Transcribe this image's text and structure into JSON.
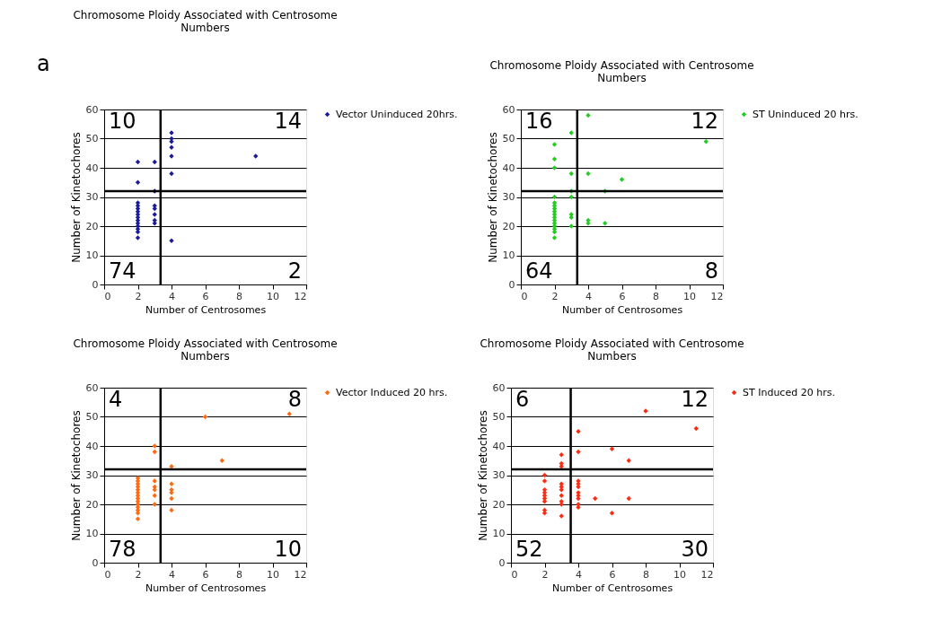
{
  "chart_data": [
    {
      "type": "scatter",
      "title": "Chromosome Ploidy Associated with Centrosome Numbers",
      "xlabel": "Number of Centrosomes",
      "ylabel": "Number of Kinetochores",
      "xlim": [
        0,
        12
      ],
      "xticks": [
        0,
        2,
        4,
        6,
        8,
        10,
        12
      ],
      "ylim": [
        0,
        60
      ],
      "yticks": [
        0,
        10,
        20,
        30,
        40,
        50,
        60
      ],
      "grid": "y",
      "legend": "right",
      "marker": "diamond",
      "annotations": [
        "10",
        "14",
        "74",
        "2",
        "a"
      ],
      "ref_lines": [
        {
          "axis": "x",
          "value": 3.35
        },
        {
          "axis": "y",
          "value": 32
        }
      ],
      "series": [
        {
          "name": "Vector Uninduced 20hrs.",
          "color": "#1a1a9a",
          "x": [
            2,
            2,
            2,
            2,
            2,
            2,
            2,
            2,
            2,
            2,
            2,
            2,
            2,
            2,
            3,
            3,
            3,
            3,
            3,
            3,
            3,
            4,
            4,
            4,
            4,
            4,
            4,
            4,
            9
          ],
          "values": [
            16,
            18,
            19,
            20,
            21,
            22,
            23,
            24,
            25,
            26,
            27,
            28,
            35,
            42,
            21,
            22,
            24,
            26,
            27,
            32,
            42,
            15,
            38,
            44,
            47,
            49,
            50,
            52,
            44
          ]
        }
      ]
    },
    {
      "type": "scatter",
      "title": "Chromosome Ploidy Associated with Centrosome Numbers",
      "xlabel": "Number of Centrosomes",
      "ylabel": "Number of Kinetochores",
      "xlim": [
        0,
        12
      ],
      "xticks": [
        0,
        2,
        4,
        6,
        8,
        10,
        12
      ],
      "ylim": [
        0,
        60
      ],
      "yticks": [
        0,
        10,
        20,
        30,
        40,
        50,
        60
      ],
      "grid": "y",
      "legend": "right",
      "marker": "diamond",
      "annotations": [
        "16",
        "12",
        "64",
        "8"
      ],
      "ref_lines": [
        {
          "axis": "x",
          "value": 3.35
        },
        {
          "axis": "y",
          "value": 32
        }
      ],
      "series": [
        {
          "name": "ST Uninduced 20 hrs.",
          "color": "#22cc22",
          "x": [
            2,
            2,
            2,
            2,
            2,
            2,
            2,
            2,
            2,
            2,
            2,
            2,
            2,
            2,
            2,
            2,
            3,
            3,
            3,
            3,
            3,
            3,
            3,
            4,
            4,
            4,
            4,
            5,
            5,
            6,
            11
          ],
          "values": [
            16,
            18,
            19,
            20,
            21,
            22,
            23,
            24,
            25,
            26,
            27,
            28,
            30,
            40,
            43,
            48,
            20,
            23,
            24,
            30,
            32,
            38,
            52,
            21,
            22,
            38,
            58,
            21,
            32,
            36,
            49
          ]
        }
      ]
    },
    {
      "type": "scatter",
      "title": "Chromosome Ploidy Associated with Centrosome Numbers",
      "xlabel": "Number of Centrosomes",
      "ylabel": "Number of Kinetochores",
      "xlim": [
        0,
        12
      ],
      "xticks": [
        0,
        2,
        4,
        6,
        8,
        10,
        12
      ],
      "ylim": [
        0,
        60
      ],
      "yticks": [
        0,
        10,
        20,
        30,
        40,
        50,
        60
      ],
      "grid": "y",
      "legend": "right",
      "marker": "diamond",
      "annotations": [
        "4",
        "8",
        "78",
        "10"
      ],
      "ref_lines": [
        {
          "axis": "x",
          "value": 3.35
        },
        {
          "axis": "y",
          "value": 32
        }
      ],
      "series": [
        {
          "name": "Vector Induced 20 hrs.",
          "color": "#ff6a10",
          "x": [
            2,
            2,
            2,
            2,
            2,
            2,
            2,
            2,
            2,
            2,
            2,
            2,
            2,
            2,
            3,
            3,
            3,
            3,
            3,
            3,
            3,
            4,
            4,
            4,
            4,
            4,
            4,
            6,
            7,
            11
          ],
          "values": [
            15,
            17,
            18,
            19,
            20,
            21,
            22,
            23,
            24,
            25,
            26,
            27,
            28,
            29,
            20,
            23,
            25,
            26,
            28,
            38,
            40,
            18,
            22,
            24,
            25,
            27,
            33,
            50,
            35,
            51
          ]
        }
      ]
    },
    {
      "type": "scatter",
      "title": "Chromosome Ploidy Associated with Centrosome Numbers",
      "xlabel": "Number of Centrosomes",
      "ylabel": "Number of Kinetochores",
      "xlim": [
        0,
        12
      ],
      "xticks": [
        0,
        2,
        4,
        6,
        8,
        10,
        12
      ],
      "ylim": [
        0,
        60
      ],
      "yticks": [
        0,
        10,
        20,
        30,
        40,
        50,
        60
      ],
      "grid": "y",
      "legend": "right",
      "marker": "diamond",
      "annotations": [
        "6",
        "12",
        "52",
        "30"
      ],
      "ref_lines": [
        {
          "axis": "x",
          "value": 3.55
        },
        {
          "axis": "y",
          "value": 32
        }
      ],
      "series": [
        {
          "name": "ST Induced 20 hrs.",
          "color": "#ff2a10",
          "x": [
            2,
            2,
            2,
            2,
            2,
            2,
            2,
            2,
            2,
            3,
            3,
            3,
            3,
            3,
            3,
            3,
            3,
            3,
            3,
            4,
            4,
            4,
            4,
            4,
            4,
            4,
            4,
            4,
            4,
            5,
            6,
            6,
            7,
            7,
            8,
            11
          ],
          "values": [
            17,
            18,
            21,
            22,
            23,
            24,
            25,
            28,
            30,
            16,
            20,
            21,
            23,
            25,
            26,
            27,
            33,
            34,
            37,
            19,
            20,
            22,
            23,
            24,
            26,
            27,
            28,
            38,
            45,
            22,
            17,
            39,
            22,
            35,
            52,
            46
          ]
        }
      ]
    }
  ]
}
